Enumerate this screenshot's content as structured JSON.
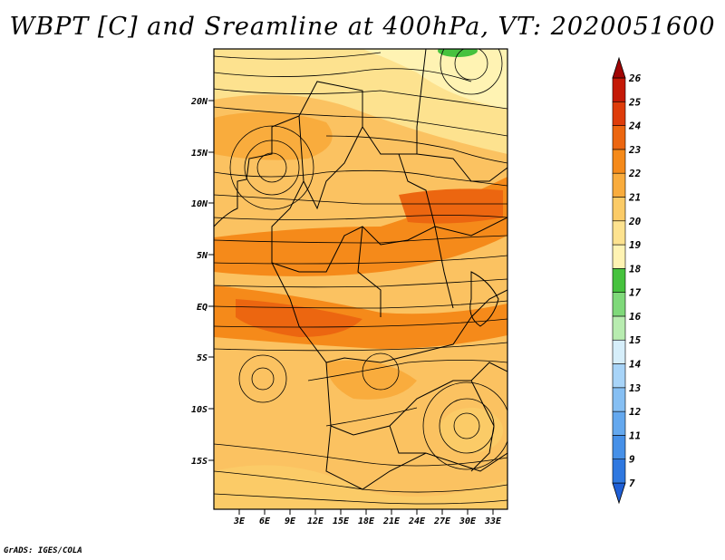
{
  "title": "WBPT [C] and Sreamline at 400hPa, VT: 2020051600",
  "footer": "GrADS: IGES/COLA",
  "map": {
    "lat_labels": [
      "20N",
      "15N",
      "10N",
      "5N",
      "EQ",
      "5S",
      "10S",
      "15S"
    ],
    "lon_labels": [
      "3E",
      "6E",
      "9E",
      "12E",
      "15E",
      "18E",
      "21E",
      "24E",
      "27E",
      "30E",
      "33E"
    ]
  },
  "colorbar": {
    "labels": [
      "7",
      "9",
      "11",
      "12",
      "13",
      "14",
      "15",
      "16",
      "17",
      "18",
      "19",
      "20",
      "21",
      "22",
      "23",
      "24",
      "25",
      "26"
    ],
    "colors": [
      "#1f5fd6",
      "#2f78e0",
      "#4690e8",
      "#64a8ee",
      "#86bff3",
      "#a8d4f8",
      "#d6eefa",
      "#b8ecb0",
      "#7fd97a",
      "#46c23e",
      "#fff3b3",
      "#fde28f",
      "#fbcb67",
      "#f9ac3d",
      "#f58a1a",
      "#ec6610",
      "#de3c0a",
      "#c41906",
      "#a00504"
    ]
  }
}
